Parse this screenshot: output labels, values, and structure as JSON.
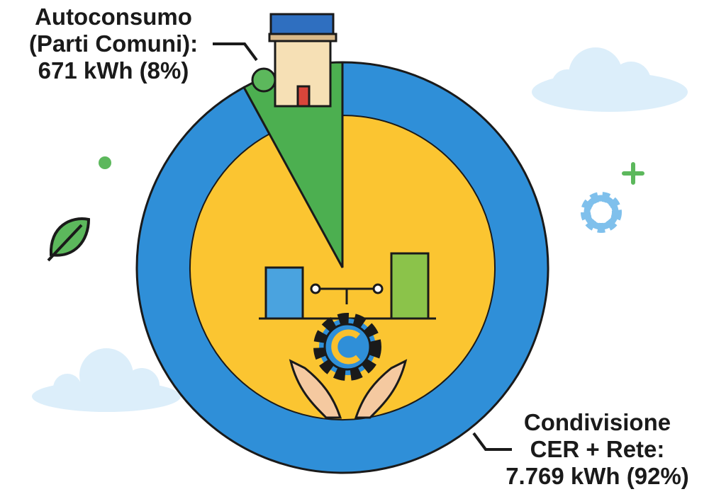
{
  "chart_data": {
    "type": "pie",
    "categories": [
      "Autoconsumo (Parti Comuni):",
      "Condivisione CER + Rete:"
    ],
    "values": [
      671,
      7769
    ],
    "value_labels": [
      "671 kWh (8%)",
      "7.769 kWh (92%)"
    ],
    "colors": [
      "#4caf50",
      "#2f8fd8"
    ]
  }
}
